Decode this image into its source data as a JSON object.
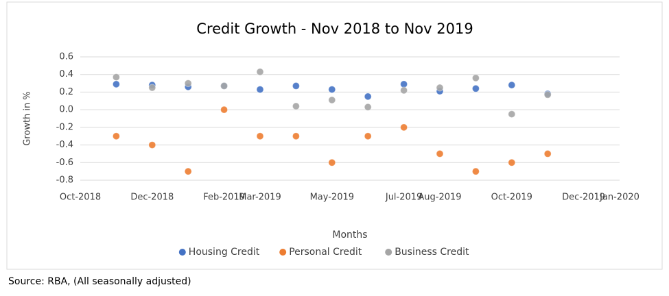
{
  "chart_data": {
    "type": "scatter",
    "title": "Credit Growth  - Nov 2018 to Nov 2019",
    "x_label": "Months",
    "y_label": "Growth in %",
    "x": [
      "2018-11",
      "2018-12",
      "2019-01",
      "2019-02",
      "2019-03",
      "2019-04",
      "2019-05",
      "2019-06",
      "2019-07",
      "2019-08",
      "2019-09",
      "2019-10",
      "2019-11"
    ],
    "series": [
      {
        "name": "Housing Credit",
        "color": "#4472c4",
        "values": [
          0.29,
          0.28,
          0.26,
          0.27,
          0.23,
          0.27,
          0.23,
          0.15,
          0.29,
          0.21,
          0.24,
          0.28,
          0.18
        ]
      },
      {
        "name": "Personal Credit",
        "color": "#ed7d31",
        "values": [
          -0.3,
          -0.4,
          -0.7,
          0.0,
          -0.3,
          -0.3,
          -0.6,
          -0.3,
          -0.2,
          -0.5,
          -0.7,
          -0.6,
          -0.5
        ]
      },
      {
        "name": "Business Credit",
        "color": "#a5a5a5",
        "values": [
          0.37,
          0.25,
          0.3,
          0.27,
          0.43,
          0.04,
          0.11,
          0.03,
          0.22,
          0.25,
          0.36,
          -0.05,
          0.17
        ]
      }
    ],
    "xlim": [
      "2018-10",
      "2020-01"
    ],
    "xticks": [
      {
        "value": "2018-10",
        "label": "Oct-2018"
      },
      {
        "value": "2018-12",
        "label": "Dec-2018"
      },
      {
        "value": "2019-02",
        "label": "Feb-2019"
      },
      {
        "value": "2019-03",
        "label": "Mar-2019"
      },
      {
        "value": "2019-05",
        "label": "May-2019"
      },
      {
        "value": "2019-07",
        "label": "Jul-2019"
      },
      {
        "value": "2019-08",
        "label": "Aug-2019"
      },
      {
        "value": "2019-10",
        "label": "Oct-2019"
      },
      {
        "value": "2019-12",
        "label": "Dec-2019"
      },
      {
        "value": "2020-01",
        "label": "Jan-2020"
      }
    ],
    "ylim": [
      -0.8,
      0.6
    ],
    "yticks": [
      -0.8,
      -0.6,
      -0.4,
      -0.2,
      {
        "value": 0,
        "label": "0.0"
      },
      0.2,
      0.4,
      0.6
    ],
    "grid": true,
    "legend": "bottom"
  },
  "source": "Source: RBA, (All seasonally adjusted)"
}
